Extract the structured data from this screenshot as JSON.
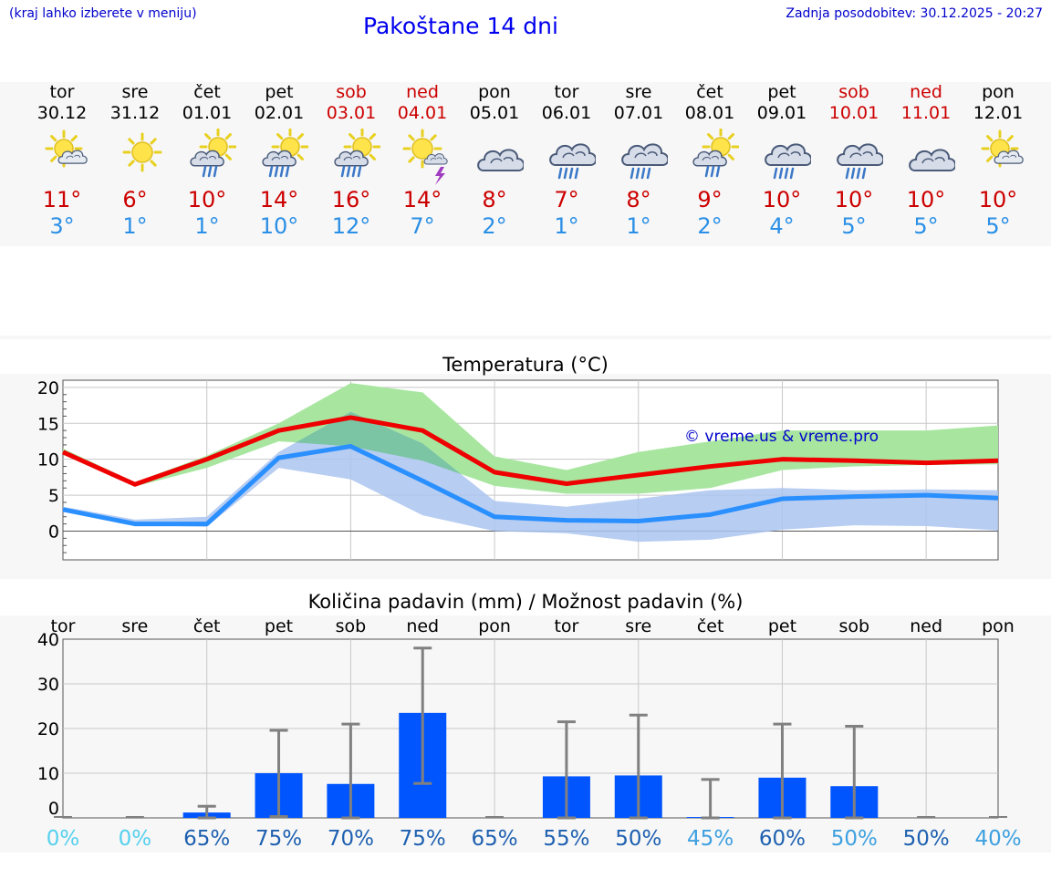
{
  "header": {
    "hint": "(kraj lahko izberete v meniju)",
    "title": "Pakoštane 14 dni",
    "updated": "Zadnja posodobitev: 30.12.2025 - 20:27"
  },
  "days": [
    {
      "name": "tor",
      "date": "30.12",
      "weekend": false,
      "icon": "partly-cloudy-sun-icon",
      "tmax": "11°",
      "tmin": "3°"
    },
    {
      "name": "sre",
      "date": "31.12",
      "weekend": false,
      "icon": "sun-icon",
      "tmax": "6°",
      "tmin": "1°"
    },
    {
      "name": "čet",
      "date": "01.01",
      "weekend": false,
      "icon": "sun-rain-cloud-icon",
      "tmax": "10°",
      "tmin": "1°"
    },
    {
      "name": "pet",
      "date": "02.01",
      "weekend": false,
      "icon": "sun-heavy-rain-icon",
      "tmax": "14°",
      "tmin": "10°"
    },
    {
      "name": "sob",
      "date": "03.01",
      "weekend": true,
      "icon": "sun-heavy-rain-icon",
      "tmax": "16°",
      "tmin": "12°"
    },
    {
      "name": "ned",
      "date": "04.01",
      "weekend": true,
      "icon": "sun-thunder-icon",
      "tmax": "14°",
      "tmin": "7°"
    },
    {
      "name": "pon",
      "date": "05.01",
      "weekend": false,
      "icon": "cloudy-icon",
      "tmax": "8°",
      "tmin": "2°"
    },
    {
      "name": "tor",
      "date": "06.01",
      "weekend": false,
      "icon": "cloud-rain-icon",
      "tmax": "7°",
      "tmin": "1°"
    },
    {
      "name": "sre",
      "date": "07.01",
      "weekend": false,
      "icon": "cloud-rain-icon",
      "tmax": "8°",
      "tmin": "1°"
    },
    {
      "name": "čet",
      "date": "08.01",
      "weekend": false,
      "icon": "sun-rain-cloud-icon",
      "tmax": "9°",
      "tmin": "2°"
    },
    {
      "name": "pet",
      "date": "09.01",
      "weekend": false,
      "icon": "cloud-rain-icon",
      "tmax": "10°",
      "tmin": "4°"
    },
    {
      "name": "sob",
      "date": "10.01",
      "weekend": true,
      "icon": "cloud-rain-icon",
      "tmax": "10°",
      "tmin": "5°"
    },
    {
      "name": "ned",
      "date": "11.01",
      "weekend": true,
      "icon": "cloudy-icon",
      "tmax": "10°",
      "tmin": "5°"
    },
    {
      "name": "pon",
      "date": "12.01",
      "weekend": false,
      "icon": "partly-cloudy-sun-icon",
      "tmax": "10°",
      "tmin": "5°"
    }
  ],
  "colors": {
    "max_line": "#ee0000",
    "min_line": "#2a8fff",
    "max_band": "#a8e6a0",
    "min_band": "#aac4f0",
    "overlap_band": "#7bc4a4",
    "bar": "#0055ff",
    "error_bar": "#808080",
    "weekend_text": "#cc0000"
  },
  "chart_data": [
    {
      "type": "line",
      "title": "Temperatura (°C)",
      "watermark": "© vreme.us & vreme.pro",
      "ylim": [
        -4,
        21
      ],
      "yticks": [
        0,
        5,
        10,
        15,
        20
      ],
      "x": [
        "30.12",
        "31.12",
        "01.01",
        "02.01",
        "03.01",
        "04.01",
        "05.01",
        "06.01",
        "07.01",
        "08.01",
        "09.01",
        "10.01",
        "11.01",
        "12.01"
      ],
      "series": [
        {
          "role": "max",
          "values": [
            11,
            6.5,
            10,
            14,
            15.8,
            14,
            8.2,
            6.6,
            7.8,
            9,
            10,
            9.8,
            9.5,
            9.8
          ]
        },
        {
          "role": "min",
          "values": [
            3,
            1,
            1,
            10.2,
            11.8,
            7,
            2,
            1.5,
            1.4,
            2.3,
            4.5,
            4.8,
            5,
            4.6
          ]
        }
      ],
      "bands": [
        {
          "role": "max",
          "low": [
            10.8,
            6.2,
            8.8,
            12.5,
            11.8,
            9.8,
            6.3,
            5.2,
            5.2,
            6,
            8.5,
            9,
            9.2,
            9.3
          ],
          "high": [
            11.5,
            6.8,
            10.5,
            15,
            20.6,
            19.3,
            10.4,
            8.5,
            11,
            12.5,
            14,
            14,
            14,
            14.7
          ]
        },
        {
          "role": "min",
          "low": [
            2.8,
            0.8,
            0.6,
            8.8,
            7.2,
            2.2,
            0,
            -0.3,
            -1.5,
            -1.2,
            0.2,
            0.8,
            0.7,
            0.1
          ],
          "high": [
            3.4,
            1.6,
            2,
            11,
            16.6,
            12.2,
            4.2,
            3.4,
            4.5,
            5.7,
            6,
            5.7,
            5.8,
            5.7
          ]
        }
      ]
    },
    {
      "type": "bar",
      "title": "Količina padavin (mm) / Možnost padavin (%)",
      "ylim": [
        0,
        40
      ],
      "yticks": [
        0,
        10,
        20,
        30,
        40
      ],
      "categories": [
        "tor",
        "sre",
        "čet",
        "pet",
        "sob",
        "ned",
        "pon",
        "tor",
        "sre",
        "čet",
        "pet",
        "sob",
        "ned",
        "pon"
      ],
      "values": [
        0,
        0,
        1.2,
        10,
        7.6,
        23.5,
        0,
        9.3,
        9.5,
        0.2,
        9,
        7.1,
        0,
        0
      ],
      "error_high": [
        0,
        0,
        2.6,
        19.6,
        21,
        38,
        0,
        21.5,
        23,
        8.6,
        21,
        20.5,
        0,
        0
      ],
      "error_low": [
        0,
        0,
        0,
        0.3,
        0,
        7.7,
        0,
        0,
        0,
        0,
        0,
        0,
        0,
        0
      ],
      "probability": [
        "0%",
        "0%",
        "65%",
        "75%",
        "70%",
        "75%",
        "65%",
        "55%",
        "50%",
        "45%",
        "60%",
        "50%",
        "50%",
        "40%"
      ],
      "probability_colors": [
        "#55d0ee",
        "#55d0ee",
        "#1e60b0",
        "#1e60b0",
        "#1e60b0",
        "#1e60b0",
        "#1e60b0",
        "#1e60b0",
        "#1e60b0",
        "#3ea0e0",
        "#1e60b0",
        "#3ea0e0",
        "#1e60b0",
        "#3ea0e0"
      ]
    }
  ]
}
